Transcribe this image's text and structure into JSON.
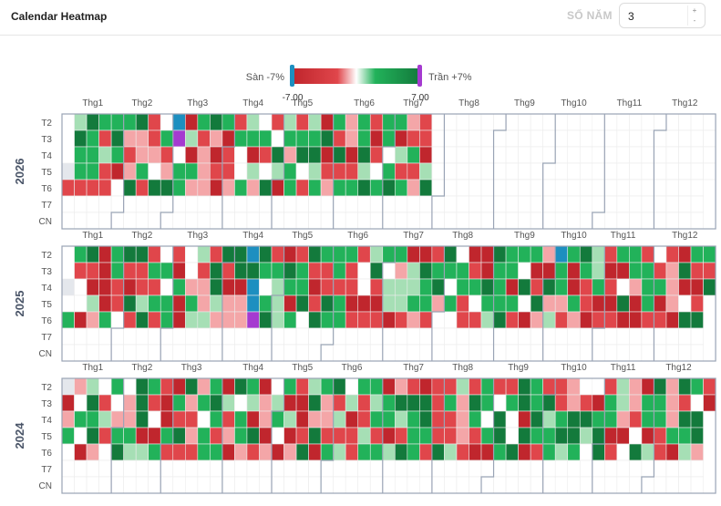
{
  "header": {
    "title": "Calendar Heatmap",
    "years_label": "SỐ NĂM",
    "years_value": "3",
    "step_up": "+",
    "step_down": "-"
  },
  "legend": {
    "min_label": "Sàn -7%",
    "max_label": "Trần +7%",
    "min_value": "-7.00",
    "max_value": "7.00"
  },
  "colors": {
    "floor": "#1d8fc0",
    "ceiling": "#a53ad0",
    "deep_red": "#c0262d",
    "red": "#e0464b",
    "light_red": "#f4a6a8",
    "white": "#ffffff",
    "light_green": "#a6dfb5",
    "green": "#22b25a",
    "deep_green": "#137a3c",
    "grid": "#ececec",
    "border": "#99a3b5"
  },
  "chart_data": {
    "type": "heatmap",
    "value_range": [
      -7,
      7
    ],
    "month_labels": [
      "Thg1",
      "Thg2",
      "Thg3",
      "Thg4",
      "Thg5",
      "Thg6",
      "Thg7",
      "Thg8",
      "Thg9",
      "Thg10",
      "Thg11",
      "Thg12"
    ],
    "day_labels": [
      "T2",
      "T3",
      "T4",
      "T5",
      "T6",
      "T7",
      "CN"
    ],
    "years": [
      {
        "year": "2026",
        "data_until": "2026-07-24",
        "floor_days": [
          "2026-03-02"
        ],
        "ceiling_days": [
          "2026-03-03"
        ]
      },
      {
        "year": "2025",
        "data_until": "2025-12-31",
        "floor_days": [
          "2025-04-14",
          "2025-04-16",
          "2025-04-17",
          "2025-10-06"
        ],
        "ceiling_days": [
          "2025-04-18"
        ]
      },
      {
        "year": "2024",
        "data_until": "2024-12-31",
        "floor_days": [],
        "ceiling_days": []
      }
    ]
  }
}
